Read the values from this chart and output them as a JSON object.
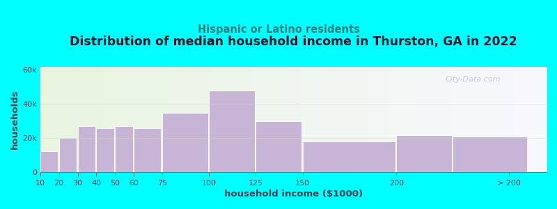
{
  "title": "Distribution of median household income in Thurston, GA in 2022",
  "subtitle": "Hispanic or Latino residents",
  "xlabel": "household income ($1000)",
  "ylabel": "households",
  "bg_color": "#00FFFF",
  "bar_color": "#C8B4D4",
  "bar_edge_color": "#FFFFFF",
  "plot_bg_left": "#e8f5e0",
  "plot_bg_right": "#f8f8ff",
  "watermark": "City-Data.com",
  "title_fontsize": 12.5,
  "subtitle_fontsize": 10.5,
  "subtitle_color": "#2a8080",
  "axis_label_fontsize": 9.5,
  "tick_fontsize": 8,
  "title_color": "#1a1a2e",
  "tick_color": "#404050",
  "bar_left_edges": [
    10,
    20,
    30,
    40,
    50,
    60,
    75,
    100,
    125,
    150,
    200,
    230
  ],
  "bar_widths": [
    10,
    10,
    10,
    10,
    10,
    15,
    25,
    25,
    25,
    50,
    30,
    40
  ],
  "values": [
    12500,
    20000,
    27000,
    26000,
    27000,
    26000,
    35000,
    48000,
    30000,
    18000,
    22000,
    21000
  ],
  "ylim": [
    0,
    62000
  ],
  "yticks": [
    0,
    20000,
    40000,
    60000
  ],
  "ytick_labels": [
    "0",
    "20k",
    "40k",
    "60k"
  ],
  "xtick_positions": [
    10,
    20,
    30,
    40,
    50,
    60,
    75,
    100,
    125,
    150,
    200,
    260
  ],
  "xtick_labels": [
    "10",
    "20",
    "30",
    "40",
    "50",
    "60",
    "75",
    "100",
    "125",
    "150",
    "200",
    "> 200"
  ],
  "xlim": [
    10,
    280
  ]
}
